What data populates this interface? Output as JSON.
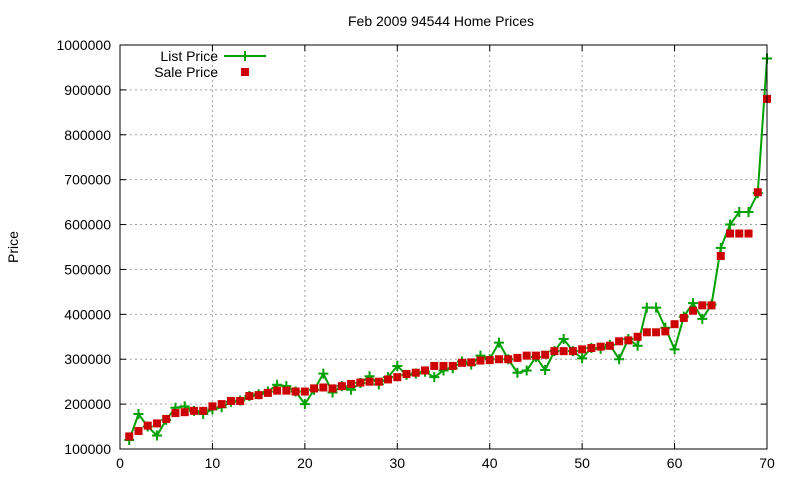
{
  "chart_data": {
    "type": "line",
    "title": "Feb 2009 94544 Home Prices",
    "xlabel": "",
    "ylabel": "Price",
    "xlim": [
      0,
      70
    ],
    "ylim": [
      100000,
      1000000
    ],
    "xticks": [
      0,
      10,
      20,
      30,
      40,
      50,
      60,
      70
    ],
    "yticks": [
      100000,
      200000,
      300000,
      400000,
      500000,
      600000,
      700000,
      800000,
      900000,
      1000000
    ],
    "grid": true,
    "legend_position": "top-left",
    "x": [
      1,
      2,
      3,
      4,
      5,
      6,
      7,
      8,
      9,
      10,
      11,
      12,
      13,
      14,
      15,
      16,
      17,
      18,
      19,
      20,
      21,
      22,
      23,
      24,
      25,
      26,
      27,
      28,
      29,
      30,
      31,
      32,
      33,
      34,
      35,
      36,
      37,
      38,
      39,
      40,
      41,
      42,
      43,
      44,
      45,
      46,
      47,
      48,
      49,
      50,
      51,
      52,
      53,
      54,
      55,
      56,
      57,
      58,
      59,
      60,
      61,
      62,
      63,
      64,
      65,
      66,
      67,
      68,
      69,
      70
    ],
    "series": [
      {
        "name": "List Price",
        "style": "line-plus",
        "color": "#00a000",
        "values": [
          120000,
          178000,
          150000,
          130000,
          165000,
          192000,
          195000,
          185000,
          178000,
          188000,
          193000,
          205000,
          208000,
          218000,
          222000,
          228000,
          243000,
          240000,
          228000,
          200000,
          232000,
          268000,
          226000,
          240000,
          232000,
          247000,
          262000,
          244000,
          260000,
          285000,
          265000,
          268000,
          272000,
          260000,
          275000,
          280000,
          295000,
          288000,
          308000,
          300000,
          337000,
          300000,
          270000,
          275000,
          305000,
          276000,
          318000,
          345000,
          318000,
          302000,
          325000,
          323000,
          332000,
          300000,
          345000,
          330000,
          415000,
          415000,
          370000,
          322000,
          395000,
          425000,
          390000,
          422000,
          548000,
          600000,
          628000,
          628000,
          670000,
          970000
        ]
      },
      {
        "name": "Sale Price",
        "style": "square",
        "color": "#cc0000",
        "values": [
          128000,
          140000,
          152000,
          157000,
          167000,
          180000,
          182000,
          185000,
          185000,
          195000,
          200000,
          207000,
          207000,
          218000,
          220000,
          225000,
          230000,
          230000,
          228000,
          228000,
          235000,
          237000,
          235000,
          240000,
          245000,
          248000,
          250000,
          250000,
          255000,
          260000,
          267000,
          270000,
          275000,
          285000,
          285000,
          285000,
          292000,
          293000,
          297000,
          298000,
          300000,
          300000,
          303000,
          308000,
          308000,
          310000,
          318000,
          318000,
          318000,
          322000,
          325000,
          328000,
          330000,
          340000,
          342000,
          350000,
          360000,
          360000,
          362000,
          378000,
          392000,
          408000,
          420000,
          420000,
          530000,
          580000,
          580000,
          580000,
          672000,
          880000
        ]
      }
    ]
  }
}
